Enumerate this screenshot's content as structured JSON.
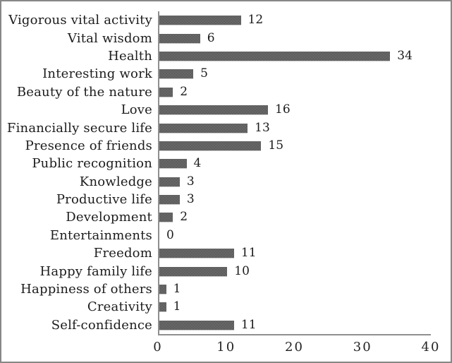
{
  "chart_data": {
    "type": "bar",
    "orientation": "horizontal",
    "title": "",
    "xlabel": "",
    "ylabel": "",
    "categories": [
      "Vigorous vital activity",
      "Vital wisdom",
      "Health",
      "Interesting work",
      "Beauty of the nature",
      "Love",
      "Financially secure life",
      "Presence of friends",
      "Public recognition",
      "Knowledge",
      "Productive life",
      "Development",
      "Entertainments",
      "Freedom",
      "Happy family life",
      "Happiness of others",
      "Creativity",
      "Self-confidence"
    ],
    "values": [
      12,
      6,
      34,
      5,
      2,
      16,
      13,
      15,
      4,
      3,
      3,
      2,
      0,
      11,
      10,
      1,
      1,
      11
    ],
    "xlim": [
      0,
      40
    ],
    "xticks": [
      0,
      10,
      20,
      30,
      40
    ],
    "grid": false,
    "legend": false,
    "data_labels": true
  },
  "style": {
    "bar_color": "#676767",
    "bar_dot_color": "#414141",
    "axis_color": "#8f8f8f",
    "text_color": "#1c1c1c",
    "frame_color": "#878787",
    "background": "#ffffff"
  }
}
